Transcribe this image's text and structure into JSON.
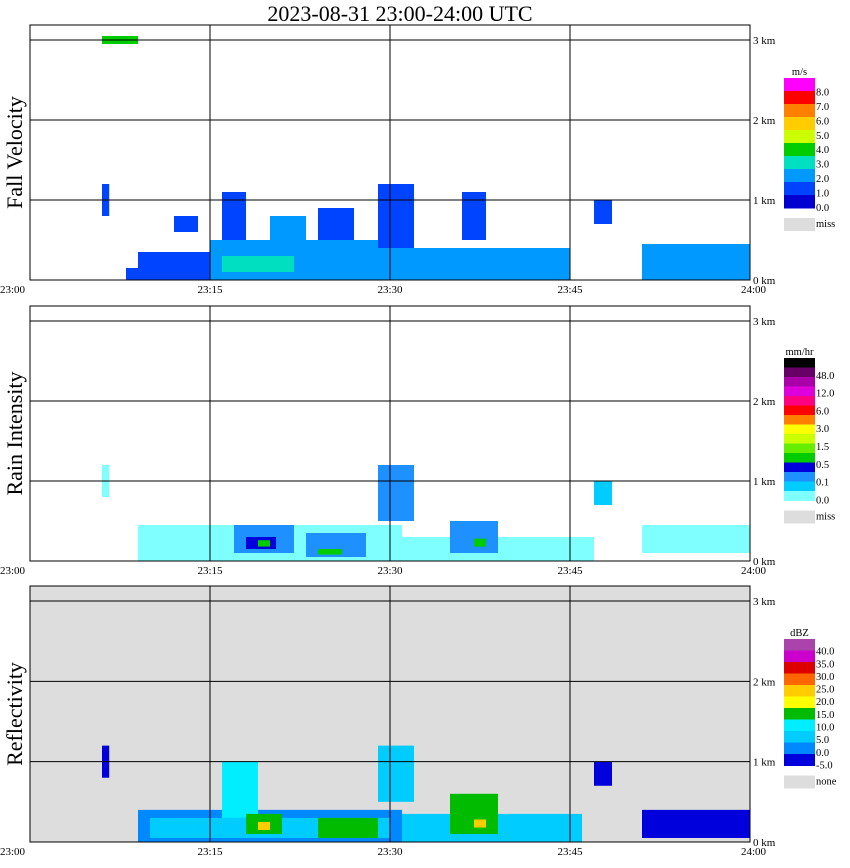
{
  "title": "2023-08-31   23:00-24:00 UTC",
  "x_ticks": [
    "23:00",
    "23:15",
    "23:30",
    "23:45",
    "24:00"
  ],
  "y_ticks": [
    "0 km",
    "1 km",
    "2 km",
    "3 km"
  ],
  "chart_data": [
    {
      "type": "heatmap",
      "ylabel": "Fall Velocity",
      "xlabel": "",
      "xlim": [
        "23:00",
        "24:00"
      ],
      "ylim_km": [
        0,
        3.0
      ],
      "background": "#ffffff",
      "colorbar": {
        "unit": "m/s",
        "labels": [
          "8.0",
          "7.0",
          "6.0",
          "5.0",
          "4.0",
          "3.0",
          "2.0",
          "1.0",
          "0.0"
        ],
        "colors": [
          "#ff00ff",
          "#ff0000",
          "#ff7f00",
          "#ffcc00",
          "#ccff00",
          "#00cc00",
          "#00e0c0",
          "#0099ff",
          "#0044ff",
          "#0000d0"
        ],
        "missing_label": "miss",
        "missing_color": "#dddddd"
      },
      "cells": [
        {
          "t0": 6.0,
          "t1": 6.6,
          "z0": 0.8,
          "z1": 1.2,
          "c": 8
        },
        {
          "t0": 8.0,
          "t1": 9.5,
          "z0": 0.0,
          "z1": 0.15,
          "c": 8
        },
        {
          "t0": 9.0,
          "t1": 15.0,
          "z0": 0.0,
          "z1": 0.35,
          "c": 8
        },
        {
          "t0": 12.0,
          "t1": 14.0,
          "z0": 0.6,
          "z1": 0.8,
          "c": 8
        },
        {
          "t0": 15.0,
          "t1": 31.0,
          "z0": 0.0,
          "z1": 0.5,
          "c": 7
        },
        {
          "t0": 16.0,
          "t1": 22.0,
          "z0": 0.1,
          "z1": 0.3,
          "c": 6
        },
        {
          "t0": 16.0,
          "t1": 18.0,
          "z0": 0.5,
          "z1": 1.1,
          "c": 8
        },
        {
          "t0": 20.0,
          "t1": 23.0,
          "z0": 0.4,
          "z1": 0.8,
          "c": 7
        },
        {
          "t0": 24.0,
          "t1": 27.0,
          "z0": 0.5,
          "z1": 0.9,
          "c": 8
        },
        {
          "t0": 31.0,
          "t1": 45.0,
          "z0": 0.0,
          "z1": 0.4,
          "c": 7
        },
        {
          "t0": 29.0,
          "t1": 32.0,
          "z0": 0.4,
          "z1": 1.2,
          "c": 8
        },
        {
          "t0": 36.0,
          "t1": 38.0,
          "z0": 0.5,
          "z1": 1.1,
          "c": 8
        },
        {
          "t0": 47.0,
          "t1": 48.5,
          "z0": 0.7,
          "z1": 1.0,
          "c": 8
        },
        {
          "t0": 51.0,
          "t1": 60.0,
          "z0": 0.0,
          "z1": 0.45,
          "c": 7
        },
        {
          "t0": 6.0,
          "t1": 9.0,
          "z0": 2.95,
          "z1": 3.05,
          "c": 5
        }
      ]
    },
    {
      "type": "heatmap",
      "ylabel": "Rain Intensity",
      "xlabel": "",
      "xlim": [
        "23:00",
        "24:00"
      ],
      "ylim_km": [
        0,
        3.0
      ],
      "background": "#ffffff",
      "colorbar": {
        "unit": "mm/hr",
        "labels": [
          "48.0",
          "12.0",
          "6.0",
          "3.0",
          "1.5",
          "0.5",
          "0.1",
          "0.0"
        ],
        "colors": [
          "#000000",
          "#660066",
          "#aa00aa",
          "#dd00dd",
          "#ff0080",
          "#ff0000",
          "#ff8000",
          "#ffff00",
          "#ccff00",
          "#66ee00",
          "#00cc00",
          "#0000dd",
          "#1e90ff",
          "#00ccff",
          "#7fffff"
        ],
        "missing_label": "miss",
        "missing_color": "#dddddd"
      },
      "cells": [
        {
          "t0": 6.0,
          "t1": 6.6,
          "z0": 0.8,
          "z1": 1.2,
          "c": 14
        },
        {
          "t0": 9.0,
          "t1": 31.0,
          "z0": 0.0,
          "z1": 0.45,
          "c": 14
        },
        {
          "t0": 17.0,
          "t1": 22.0,
          "z0": 0.1,
          "z1": 0.45,
          "c": 12
        },
        {
          "t0": 18.0,
          "t1": 20.5,
          "z0": 0.15,
          "z1": 0.3,
          "c": 11
        },
        {
          "t0": 19.0,
          "t1": 20.0,
          "z0": 0.18,
          "z1": 0.26,
          "c": 10
        },
        {
          "t0": 23.0,
          "t1": 28.0,
          "z0": 0.05,
          "z1": 0.35,
          "c": 12
        },
        {
          "t0": 24.0,
          "t1": 26.0,
          "z0": 0.08,
          "z1": 0.15,
          "c": 10
        },
        {
          "t0": 29.0,
          "t1": 32.0,
          "z0": 0.5,
          "z1": 1.2,
          "c": 12
        },
        {
          "t0": 31.0,
          "t1": 47.0,
          "z0": 0.0,
          "z1": 0.3,
          "c": 14
        },
        {
          "t0": 35.0,
          "t1": 39.0,
          "z0": 0.1,
          "z1": 0.5,
          "c": 12
        },
        {
          "t0": 37.0,
          "t1": 38.0,
          "z0": 0.18,
          "z1": 0.28,
          "c": 10
        },
        {
          "t0": 47.0,
          "t1": 48.5,
          "z0": 0.7,
          "z1": 1.0,
          "c": 13
        },
        {
          "t0": 51.0,
          "t1": 60.0,
          "z0": 0.1,
          "z1": 0.45,
          "c": 14
        }
      ]
    },
    {
      "type": "heatmap",
      "ylabel": "Reflectivity",
      "xlabel": "",
      "xlim": [
        "23:00",
        "24:00"
      ],
      "ylim_km": [
        0,
        3.0
      ],
      "background": "#dddddd",
      "colorbar": {
        "unit": "dBZ",
        "labels": [
          "40.0",
          "35.0",
          "30.0",
          "25.0",
          "20.0",
          "15.0",
          "10.0",
          "5.0",
          "0.0",
          "-5.0"
        ],
        "colors": [
          "#aa44aa",
          "#cc00cc",
          "#dd0000",
          "#ff6600",
          "#ffcc00",
          "#ffff00",
          "#00bb00",
          "#00eeff",
          "#00ccff",
          "#0088ff",
          "#0000dd"
        ],
        "missing_label": "none",
        "missing_color": "#dddddd"
      },
      "cells": [
        {
          "t0": 6.0,
          "t1": 6.6,
          "z0": 0.8,
          "z1": 1.2,
          "c": 10
        },
        {
          "t0": 9.0,
          "t1": 31.0,
          "z0": 0.0,
          "z1": 0.4,
          "c": 9
        },
        {
          "t0": 10.0,
          "t1": 30.0,
          "z0": 0.05,
          "z1": 0.3,
          "c": 8
        },
        {
          "t0": 16.0,
          "t1": 19.0,
          "z0": 0.3,
          "z1": 1.0,
          "c": 7
        },
        {
          "t0": 18.0,
          "t1": 21.0,
          "z0": 0.1,
          "z1": 0.35,
          "c": 6
        },
        {
          "t0": 19.0,
          "t1": 20.0,
          "z0": 0.15,
          "z1": 0.25,
          "c": 4
        },
        {
          "t0": 24.0,
          "t1": 29.0,
          "z0": 0.05,
          "z1": 0.3,
          "c": 6
        },
        {
          "t0": 29.0,
          "t1": 32.0,
          "z0": 0.5,
          "z1": 1.2,
          "c": 8
        },
        {
          "t0": 31.0,
          "t1": 46.0,
          "z0": 0.0,
          "z1": 0.35,
          "c": 8
        },
        {
          "t0": 35.0,
          "t1": 39.0,
          "z0": 0.1,
          "z1": 0.6,
          "c": 6
        },
        {
          "t0": 37.0,
          "t1": 38.0,
          "z0": 0.18,
          "z1": 0.28,
          "c": 4
        },
        {
          "t0": 47.0,
          "t1": 48.5,
          "z0": 0.7,
          "z1": 1.0,
          "c": 10
        },
        {
          "t0": 51.0,
          "t1": 60.0,
          "z0": 0.05,
          "z1": 0.4,
          "c": 10
        }
      ]
    }
  ]
}
